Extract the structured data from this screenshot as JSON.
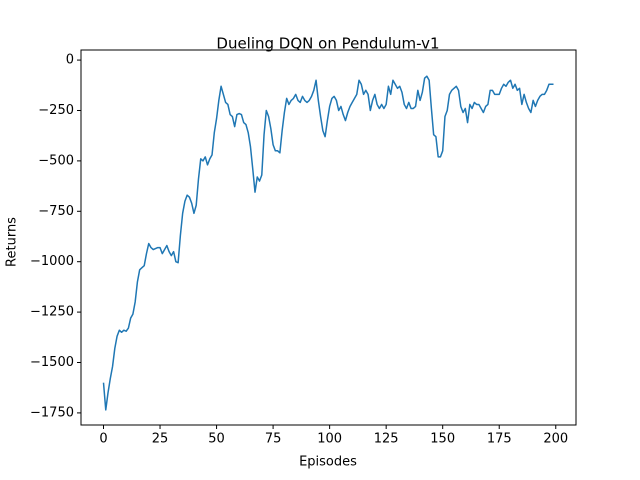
{
  "chart_data": {
    "type": "line",
    "title": "Dueling DQN on Pendulum-v1",
    "x_label": "Episodes",
    "y_label": "Returns",
    "xlim": [
      -9.95,
      208.95
    ],
    "ylim": [
      -1810,
      50
    ],
    "xticks": [
      0,
      25,
      50,
      75,
      100,
      125,
      150,
      175,
      200
    ],
    "yticks": [
      0,
      {
        "value": -250,
        "label": "−250"
      },
      {
        "value": -500,
        "label": "−500"
      },
      {
        "value": -750,
        "label": "−750"
      },
      {
        "value": -1000,
        "label": "−1000"
      },
      {
        "value": -1250,
        "label": "−1250"
      },
      {
        "value": -1500,
        "label": "−1500"
      },
      {
        "value": -1750,
        "label": "−1750"
      }
    ],
    "grid": false,
    "x": [
      0,
      1,
      2,
      3,
      4,
      5,
      6,
      7,
      8,
      9,
      10,
      11,
      12,
      13,
      14,
      15,
      16,
      17,
      18,
      19,
      20,
      21,
      22,
      23,
      24,
      25,
      26,
      27,
      28,
      29,
      30,
      31,
      32,
      33,
      34,
      35,
      36,
      37,
      38,
      39,
      40,
      41,
      42,
      43,
      44,
      45,
      46,
      47,
      48,
      49,
      50,
      51,
      52,
      53,
      54,
      55,
      56,
      57,
      58,
      59,
      60,
      61,
      62,
      63,
      64,
      65,
      66,
      67,
      68,
      69,
      70,
      71,
      72,
      73,
      74,
      75,
      76,
      77,
      78,
      79,
      80,
      81,
      82,
      83,
      84,
      85,
      86,
      87,
      88,
      89,
      90,
      91,
      92,
      93,
      94,
      95,
      96,
      97,
      98,
      99,
      100,
      101,
      102,
      103,
      104,
      105,
      106,
      107,
      108,
      109,
      110,
      111,
      112,
      113,
      114,
      115,
      116,
      117,
      118,
      119,
      120,
      121,
      122,
      123,
      124,
      125,
      126,
      127,
      128,
      129,
      130,
      131,
      132,
      133,
      134,
      135,
      136,
      137,
      138,
      139,
      140,
      141,
      142,
      143,
      144,
      145,
      146,
      147,
      148,
      149,
      150,
      151,
      152,
      153,
      154,
      155,
      156,
      157,
      158,
      159,
      160,
      161,
      162,
      163,
      164,
      165,
      166,
      167,
      168,
      169,
      170,
      171,
      172,
      173,
      174,
      175,
      176,
      177,
      178,
      179,
      180,
      181,
      182,
      183,
      184,
      185,
      186,
      187,
      188,
      189,
      190,
      191,
      192,
      193,
      194,
      195,
      196,
      197,
      198,
      199
    ],
    "series": [
      {
        "color": "#1f77b4",
        "values": [
          -1600,
          -1735,
          -1650,
          -1580,
          -1520,
          -1430,
          -1370,
          -1340,
          -1350,
          -1340,
          -1345,
          -1330,
          -1280,
          -1260,
          -1200,
          -1100,
          -1040,
          -1030,
          -1020,
          -960,
          -910,
          -930,
          -940,
          -935,
          -930,
          -930,
          -960,
          -940,
          -920,
          -950,
          -970,
          -950,
          -1000,
          -1005,
          -870,
          -760,
          -700,
          -670,
          -680,
          -710,
          -760,
          -720,
          -590,
          -490,
          -500,
          -480,
          -520,
          -490,
          -470,
          -360,
          -290,
          -200,
          -130,
          -170,
          -210,
          -220,
          -270,
          -280,
          -330,
          -270,
          -265,
          -270,
          -310,
          -320,
          -360,
          -430,
          -540,
          -655,
          -580,
          -600,
          -570,
          -370,
          -250,
          -280,
          -340,
          -420,
          -450,
          -450,
          -460,
          -350,
          -260,
          -190,
          -220,
          -200,
          -190,
          -170,
          -200,
          -210,
          -180,
          -200,
          -210,
          -200,
          -180,
          -150,
          -100,
          -200,
          -280,
          -350,
          -380,
          -300,
          -230,
          -190,
          -180,
          -200,
          -250,
          -230,
          -270,
          -300,
          -260,
          -230,
          -210,
          -190,
          -170,
          -100,
          -120,
          -170,
          -150,
          -170,
          -250,
          -200,
          -170,
          -220,
          -240,
          -220,
          -240,
          -220,
          -130,
          -170,
          -100,
          -120,
          -140,
          -130,
          -160,
          -220,
          -240,
          -210,
          -240,
          -240,
          -230,
          -150,
          -200,
          -160,
          -90,
          -80,
          -100,
          -240,
          -370,
          -380,
          -480,
          -480,
          -450,
          -280,
          -250,
          -170,
          -150,
          -140,
          -130,
          -150,
          -230,
          -260,
          -240,
          -310,
          -220,
          -240,
          -210,
          -220,
          -220,
          -240,
          -260,
          -230,
          -220,
          -150,
          -150,
          -170,
          -170,
          -170,
          -140,
          -120,
          -130,
          -110,
          -100,
          -140,
          -120,
          -150,
          -140,
          -220,
          -170,
          -210,
          -240,
          -260,
          -200,
          -230,
          -200,
          -180,
          -170,
          -170,
          -150,
          -120,
          -120,
          -120
        ]
      }
    ]
  }
}
